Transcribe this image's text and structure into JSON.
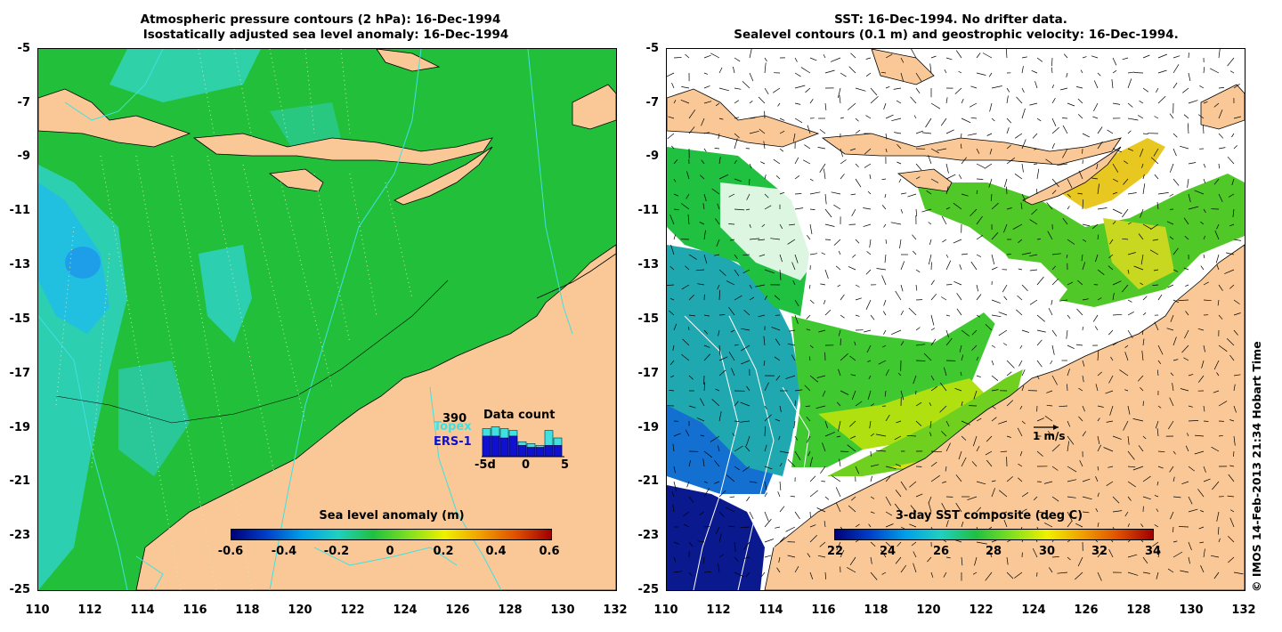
{
  "left_panel": {
    "title_line1": "Atmospheric pressure contours (2 hPa): 16-Dec-1994",
    "title_line2": "Isostatically adjusted sea level anomaly: 16-Dec-1994",
    "y_ticks": [
      "-5",
      "-7",
      "-9",
      "-11",
      "-13",
      "-15",
      "-17",
      "-19",
      "-21",
      "-23",
      "-25"
    ],
    "x_ticks": [
      "110",
      "112",
      "114",
      "116",
      "118",
      "120",
      "122",
      "124",
      "126",
      "128",
      "130",
      "132"
    ],
    "colorbar": {
      "title": "Sea level anomaly (m)",
      "ticks": [
        "-0.6",
        "-0.4",
        "-0.2",
        "0",
        "0.2",
        "0.4",
        "0.6"
      ]
    },
    "data_count": {
      "title": "Data count",
      "max_label": "390",
      "topex_label": "Topex",
      "ers_label": "ERS-1",
      "x_ticks": [
        "-5d",
        "0",
        "5"
      ],
      "topex_values": [
        0.75,
        0.8,
        0.75,
        0.7,
        0.4,
        0.35,
        0.3,
        0.7,
        0.5
      ],
      "ers_values": [
        0.55,
        0.55,
        0.5,
        0.55,
        0.3,
        0.25,
        0.25,
        0.3,
        0.3
      ]
    }
  },
  "right_panel": {
    "title_line1": "SST: 16-Dec-1994. No drifter data.",
    "title_line2": "Sealevel contours (0.1 m) and geostrophic velocity: 16-Dec-1994.",
    "y_ticks": [
      "-5",
      "-7",
      "-9",
      "-11",
      "-13",
      "-15",
      "-17",
      "-19",
      "-21",
      "-23",
      "-25"
    ],
    "x_ticks": [
      "110",
      "112",
      "114",
      "116",
      "118",
      "120",
      "122",
      "124",
      "126",
      "128",
      "130",
      "132"
    ],
    "colorbar": {
      "title": "3-day SST composite (deg C)",
      "ticks": [
        "22",
        "24",
        "26",
        "28",
        "30",
        "32",
        "34"
      ]
    },
    "velocity_scale_label": "1 m/s"
  },
  "side_caption": "© IMOS 14-Feb-2013 21:34 Hobart Time",
  "colors": {
    "land": "#f9c896",
    "ocean_green": "#22c03a",
    "ocean_cyan": "#2ad6c8",
    "sst_blue": "#0a1890",
    "coast_line": "#000000",
    "contour_cyan": "#40e0e0"
  }
}
